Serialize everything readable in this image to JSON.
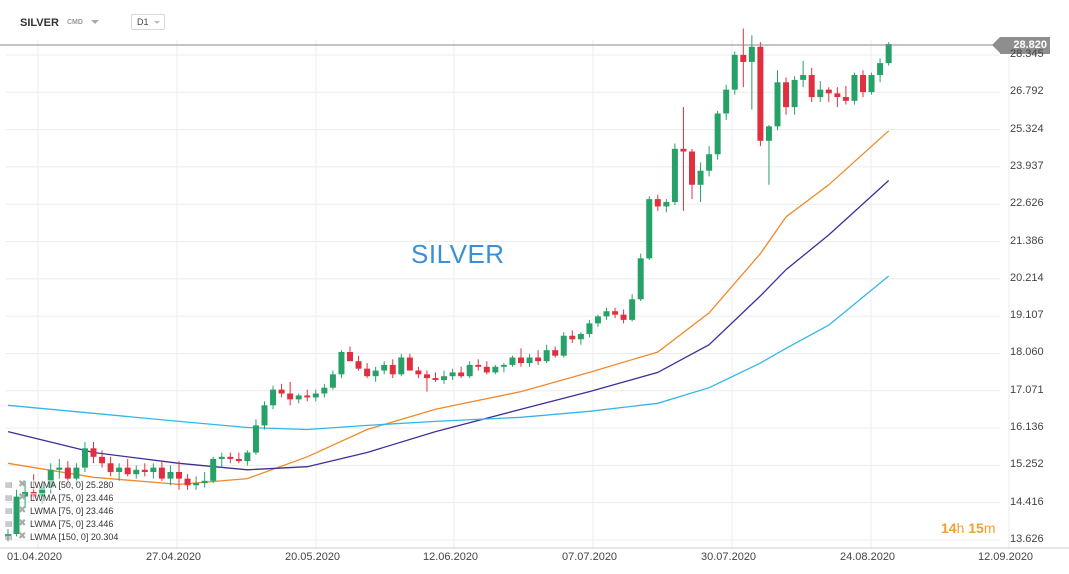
{
  "toolbar": {
    "symbol": "SILVER",
    "class": "CMD",
    "timeframe": "D1"
  },
  "watermark": "SILVER",
  "current_price": "28.820",
  "countdown": {
    "hours": "14",
    "h": "h",
    "minutes": "15",
    "m": "m"
  },
  "legend": [
    {
      "text": "LWMA [50, 0] 25.280"
    },
    {
      "text": "LWMA [75, 0] 23.446"
    },
    {
      "text": "LWMA [75, 0] 23.446"
    },
    {
      "text": "LWMA [75, 0] 23.446"
    },
    {
      "text": "LWMA [150, 0] 20.304"
    }
  ],
  "chart_data": {
    "type": "candlestick",
    "title": "SILVER",
    "y_ticks": [
      "28.345",
      "26.792",
      "25.324",
      "23.937",
      "22.626",
      "21.386",
      "20.214",
      "19.107",
      "18.060",
      "17.071",
      "16.136",
      "15.252",
      "14.416",
      "13.626"
    ],
    "x_ticks": [
      "01.04.2020",
      "27.04.2020",
      "20.05.2020",
      "12.06.2020",
      "07.07.2020",
      "30.07.2020",
      "24.08.2020",
      "12.09.2020"
    ],
    "ylim": [
      13.626,
      29.6
    ],
    "y_scale": "log",
    "grid": true,
    "candles": [
      [
        13.7,
        13.85,
        13.6,
        13.75
      ],
      [
        13.75,
        14.7,
        13.7,
        14.55
      ],
      [
        14.55,
        14.9,
        14.3,
        14.65
      ],
      [
        14.65,
        15.05,
        14.45,
        14.55
      ],
      [
        14.55,
        14.9,
        14.4,
        14.75
      ],
      [
        14.75,
        15.3,
        14.6,
        15.15
      ],
      [
        15.15,
        15.4,
        14.95,
        15.2
      ],
      [
        15.2,
        15.35,
        14.8,
        14.95
      ],
      [
        14.95,
        15.3,
        14.8,
        15.2
      ],
      [
        15.2,
        15.8,
        15.1,
        15.65
      ],
      [
        15.65,
        15.8,
        15.3,
        15.45
      ],
      [
        15.45,
        15.6,
        15.2,
        15.3
      ],
      [
        15.3,
        15.45,
        15.0,
        15.1
      ],
      [
        15.1,
        15.3,
        14.9,
        15.2
      ],
      [
        15.2,
        15.4,
        15.0,
        15.05
      ],
      [
        15.05,
        15.25,
        14.95,
        15.15
      ],
      [
        15.15,
        15.3,
        15.0,
        15.1
      ],
      [
        15.1,
        15.3,
        14.95,
        15.2
      ],
      [
        15.2,
        15.35,
        14.9,
        14.95
      ],
      [
        14.95,
        15.25,
        14.8,
        15.1
      ],
      [
        15.1,
        15.35,
        14.7,
        14.95
      ],
      [
        14.95,
        15.05,
        14.7,
        14.8
      ],
      [
        14.8,
        15.0,
        14.7,
        14.85
      ],
      [
        14.85,
        15.1,
        14.75,
        14.9
      ],
      [
        14.9,
        15.45,
        14.85,
        15.4
      ],
      [
        15.4,
        15.55,
        15.2,
        15.45
      ],
      [
        15.45,
        15.55,
        15.3,
        15.4
      ],
      [
        15.4,
        15.55,
        15.3,
        15.35
      ],
      [
        15.35,
        15.6,
        15.25,
        15.55
      ],
      [
        15.55,
        16.35,
        15.5,
        16.2
      ],
      [
        16.2,
        16.8,
        16.1,
        16.7
      ],
      [
        16.7,
        17.2,
        16.6,
        17.1
      ],
      [
        17.1,
        17.25,
        16.9,
        17.0
      ],
      [
        17.0,
        17.3,
        16.7,
        16.85
      ],
      [
        16.85,
        17.0,
        16.75,
        16.95
      ],
      [
        16.95,
        17.1,
        16.8,
        16.9
      ],
      [
        16.9,
        17.1,
        16.8,
        17.0
      ],
      [
        17.0,
        17.25,
        16.9,
        17.15
      ],
      [
        17.15,
        17.6,
        17.1,
        17.5
      ],
      [
        17.5,
        18.15,
        17.4,
        18.1
      ],
      [
        18.1,
        18.25,
        17.9,
        17.85
      ],
      [
        17.85,
        18.0,
        17.6,
        17.65
      ],
      [
        17.65,
        17.8,
        17.4,
        17.45
      ],
      [
        17.45,
        17.7,
        17.3,
        17.6
      ],
      [
        17.6,
        17.85,
        17.5,
        17.75
      ],
      [
        17.75,
        17.9,
        17.4,
        17.5
      ],
      [
        17.5,
        18.05,
        17.45,
        17.95
      ],
      [
        17.95,
        18.05,
        17.6,
        17.6
      ],
      [
        17.6,
        17.7,
        17.4,
        17.5
      ],
      [
        17.5,
        17.6,
        17.05,
        17.4
      ],
      [
        17.4,
        17.55,
        17.3,
        17.35
      ],
      [
        17.35,
        17.6,
        17.25,
        17.45
      ],
      [
        17.45,
        17.65,
        17.35,
        17.55
      ],
      [
        17.55,
        17.7,
        17.4,
        17.45
      ],
      [
        17.45,
        17.85,
        17.4,
        17.75
      ],
      [
        17.75,
        17.9,
        17.6,
        17.7
      ],
      [
        17.7,
        17.85,
        17.5,
        17.55
      ],
      [
        17.55,
        17.75,
        17.5,
        17.7
      ],
      [
        17.7,
        17.8,
        17.55,
        17.75
      ],
      [
        17.75,
        18.0,
        17.7,
        17.95
      ],
      [
        17.95,
        18.2,
        17.7,
        17.8
      ],
      [
        17.8,
        18.05,
        17.7,
        17.95
      ],
      [
        17.95,
        18.15,
        17.75,
        17.85
      ],
      [
        17.85,
        18.3,
        17.8,
        18.15
      ],
      [
        18.15,
        18.25,
        17.95,
        18.0
      ],
      [
        18.0,
        18.65,
        17.95,
        18.55
      ],
      [
        18.55,
        18.7,
        18.35,
        18.45
      ],
      [
        18.45,
        18.65,
        18.3,
        18.6
      ],
      [
        18.6,
        19.0,
        18.5,
        18.9
      ],
      [
        18.9,
        19.15,
        18.8,
        19.1
      ],
      [
        19.1,
        19.35,
        19.0,
        19.25
      ],
      [
        19.25,
        19.35,
        19.05,
        19.15
      ],
      [
        19.15,
        19.3,
        18.9,
        19.0
      ],
      [
        19.0,
        19.75,
        18.95,
        19.6
      ],
      [
        19.6,
        21.0,
        19.55,
        20.85
      ],
      [
        20.85,
        22.9,
        20.8,
        22.8
      ],
      [
        22.8,
        22.95,
        22.4,
        22.55
      ],
      [
        22.55,
        22.8,
        22.35,
        22.7
      ],
      [
        22.7,
        24.8,
        22.6,
        24.6
      ],
      [
        24.6,
        26.2,
        22.4,
        24.5
      ],
      [
        24.5,
        24.6,
        22.8,
        23.3
      ],
      [
        23.3,
        24.1,
        22.7,
        23.8
      ],
      [
        23.8,
        24.7,
        23.6,
        24.4
      ],
      [
        24.4,
        26.05,
        24.2,
        25.95
      ],
      [
        25.95,
        27.1,
        25.7,
        26.9
      ],
      [
        26.9,
        28.5,
        26.7,
        28.35
      ],
      [
        28.35,
        29.5,
        27.0,
        28.05
      ],
      [
        28.05,
        29.2,
        26.1,
        28.7
      ],
      [
        28.7,
        28.9,
        24.7,
        24.9
      ],
      [
        24.9,
        25.5,
        23.3,
        25.45
      ],
      [
        25.45,
        27.7,
        25.3,
        27.2
      ],
      [
        27.2,
        27.4,
        25.9,
        26.2
      ],
      [
        26.2,
        27.45,
        25.9,
        27.3
      ],
      [
        27.3,
        28.1,
        27.0,
        27.5
      ],
      [
        27.5,
        27.8,
        26.4,
        26.6
      ],
      [
        26.6,
        27.25,
        26.4,
        26.9
      ],
      [
        26.9,
        27.0,
        26.4,
        26.75
      ],
      [
        26.75,
        27.0,
        26.2,
        26.6
      ],
      [
        26.6,
        27.05,
        26.3,
        26.45
      ],
      [
        26.45,
        27.6,
        26.3,
        27.5
      ],
      [
        27.5,
        27.7,
        26.6,
        26.8
      ],
      [
        26.8,
        27.6,
        26.7,
        27.5
      ],
      [
        27.5,
        28.2,
        27.2,
        28.0
      ],
      [
        28.0,
        28.9,
        27.9,
        28.82
      ]
    ],
    "series": [
      {
        "color": "#f08a2a",
        "points": [
          [
            0,
            15.3
          ],
          [
            10,
            14.98
          ],
          [
            20,
            14.82
          ],
          [
            28,
            14.95
          ],
          [
            35,
            15.45
          ],
          [
            42,
            16.1
          ],
          [
            50,
            16.6
          ],
          [
            60,
            17.05
          ],
          [
            68,
            17.55
          ],
          [
            76,
            18.1
          ],
          [
            82,
            19.2
          ],
          [
            88,
            21.0
          ],
          [
            91,
            22.2
          ],
          [
            96,
            23.3
          ],
          [
            103,
            25.28
          ]
        ]
      },
      {
        "color": "#3d2f96",
        "points": [
          [
            0,
            16.05
          ],
          [
            10,
            15.55
          ],
          [
            20,
            15.3
          ],
          [
            28,
            15.15
          ],
          [
            35,
            15.22
          ],
          [
            42,
            15.55
          ],
          [
            50,
            16.05
          ],
          [
            60,
            16.6
          ],
          [
            68,
            17.05
          ],
          [
            76,
            17.55
          ],
          [
            82,
            18.3
          ],
          [
            88,
            19.7
          ],
          [
            91,
            20.5
          ],
          [
            96,
            21.6
          ],
          [
            103,
            23.45
          ]
        ]
      },
      {
        "color": "#33b7e8",
        "points": [
          [
            0,
            16.7
          ],
          [
            10,
            16.5
          ],
          [
            20,
            16.3
          ],
          [
            28,
            16.15
          ],
          [
            35,
            16.1
          ],
          [
            42,
            16.2
          ],
          [
            50,
            16.3
          ],
          [
            60,
            16.4
          ],
          [
            68,
            16.55
          ],
          [
            76,
            16.75
          ],
          [
            82,
            17.15
          ],
          [
            88,
            17.8
          ],
          [
            91,
            18.2
          ],
          [
            96,
            18.85
          ],
          [
            103,
            20.3
          ]
        ]
      }
    ]
  }
}
